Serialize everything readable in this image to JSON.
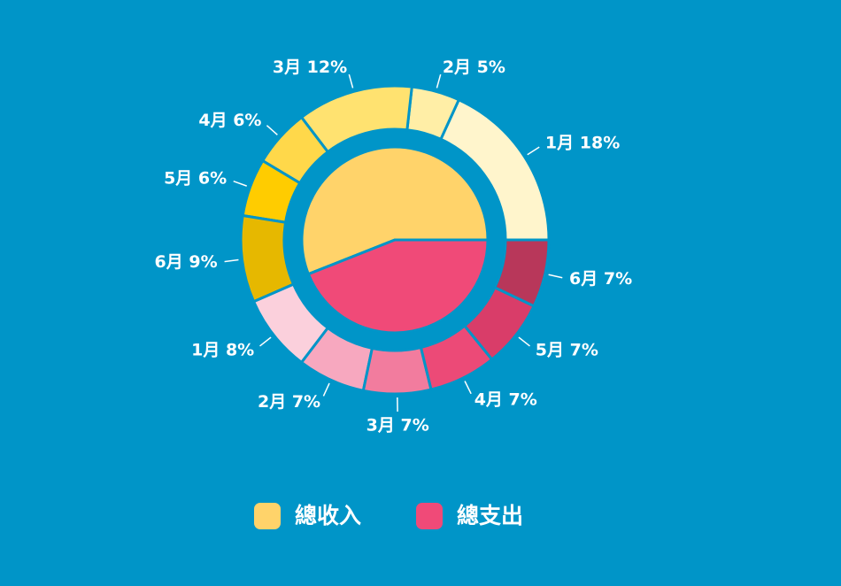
{
  "chart_data": {
    "type": "nested-pie",
    "series": [
      {
        "name": "總收入",
        "color": "#ffd36a",
        "total": 56,
        "values": [
          18,
          5,
          12,
          6,
          6,
          9
        ],
        "value_labels": [
          "1月 18%",
          "2月 5%",
          "3月 12%",
          "4月 6%",
          "5月 6%",
          "6月 9%"
        ],
        "colors": [
          "#fff5cc",
          "#ffeea6",
          "#ffe270",
          "#ffd84a",
          "#ffcc00",
          "#e6b800"
        ]
      },
      {
        "name": "總支出",
        "color": "#f04a78",
        "total": 44,
        "values": [
          8,
          7,
          7,
          7,
          7,
          7
        ],
        "value_labels": [
          "1月 8%",
          "2月 7%",
          "3月 7%",
          "4月 7%",
          "5月 7%",
          "6月 7%"
        ],
        "colors": [
          "#fbd0dc",
          "#f7a8bf",
          "#f27c9e",
          "#ec4a77",
          "#d93d69",
          "#b8375a"
        ]
      }
    ]
  }
}
